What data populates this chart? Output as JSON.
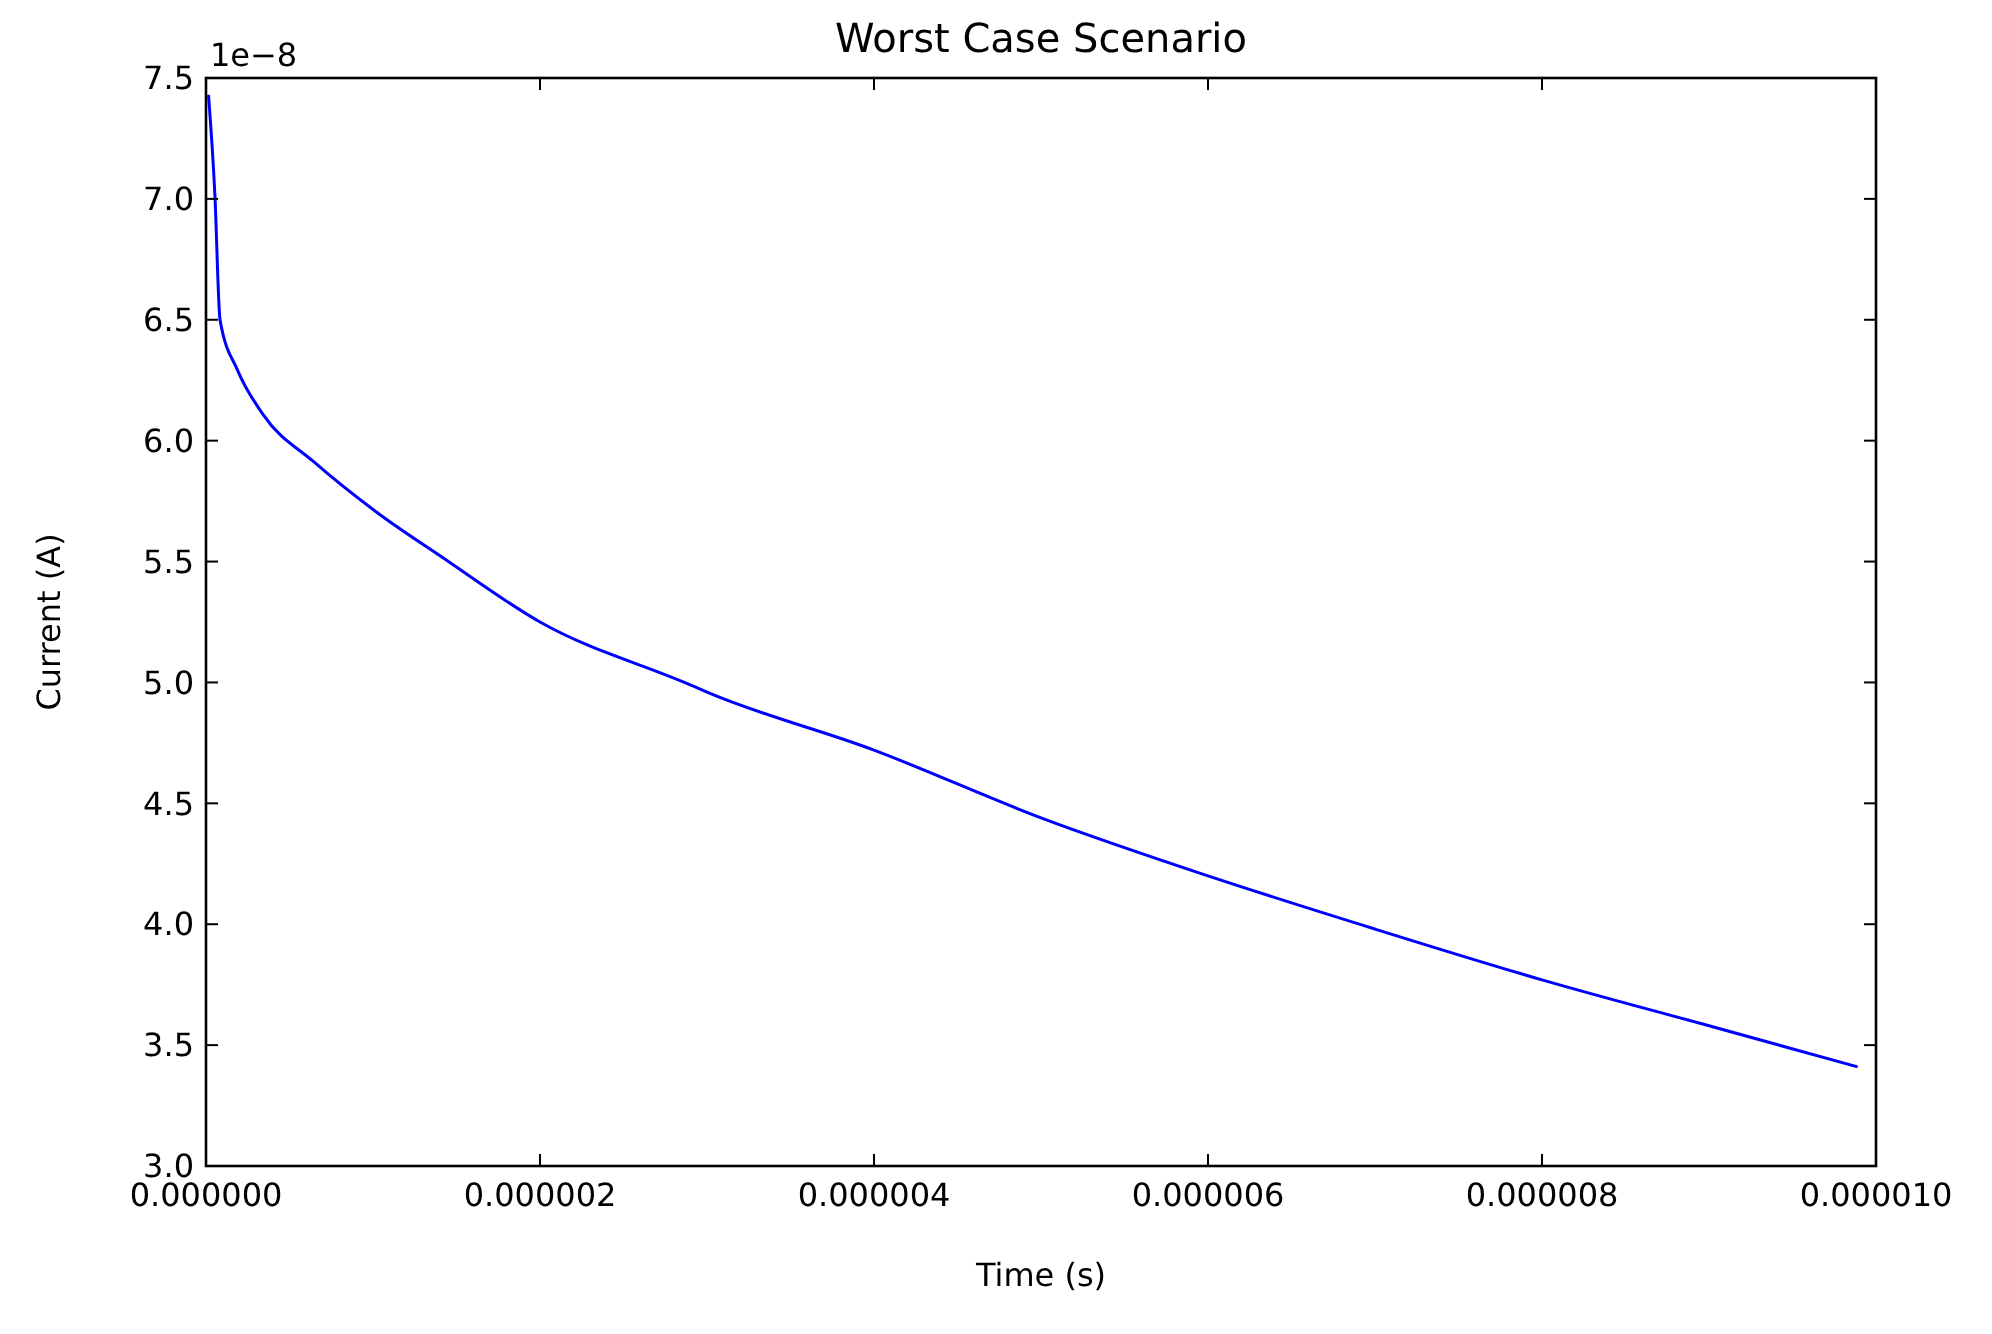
{
  "chart_data": {
    "type": "line",
    "title": "Worst Case Scenario",
    "xlabel": "Time (s)",
    "ylabel": "Current (A)",
    "annotations": [
      "1e−8"
    ],
    "x": [
      1.5e-08,
      5.3e-08,
      8.4e-08,
      1.9e-07,
      3.4e-07,
      6.5e-07,
      1.03e-06,
      1.41e-06,
      2e-06,
      2.9e-06,
      3e-06,
      4e-06,
      5e-06,
      6e-06,
      7e-06,
      8e-06,
      9e-06,
      9.89e-06
    ],
    "series": [
      {
        "color": "#0000ff",
        "values": [
          7.43,
          7.02,
          6.5,
          6.29,
          6.11,
          5.91,
          5.7,
          5.52,
          5.25,
          4.99,
          4.96,
          4.72,
          4.44,
          4.2,
          3.98,
          3.77,
          3.58,
          3.41
        ]
      }
    ],
    "xlim": [
      0,
      1e-05
    ],
    "ylim": [
      3.0,
      7.5
    ],
    "xticks": [
      {
        "value": 0,
        "label": "0.000000"
      },
      {
        "value": 2e-06,
        "label": "0.000002"
      },
      {
        "value": 4e-06,
        "label": "0.000004"
      },
      {
        "value": 6e-06,
        "label": "0.000006"
      },
      {
        "value": 8e-06,
        "label": "0.000008"
      },
      {
        "value": 1e-05,
        "label": "0.000010"
      }
    ],
    "yticks": [
      {
        "value": 3.0,
        "label": "3.0"
      },
      {
        "value": 3.5,
        "label": "3.5"
      },
      {
        "value": 4.0,
        "label": "4.0"
      },
      {
        "value": 4.5,
        "label": "4.5"
      },
      {
        "value": 5.0,
        "label": "5.0"
      },
      {
        "value": 5.5,
        "label": "5.5"
      },
      {
        "value": 6.0,
        "label": "6.0"
      },
      {
        "value": 6.5,
        "label": "6.5"
      },
      {
        "value": 7.0,
        "label": "7.0"
      },
      {
        "value": 7.5,
        "label": "7.5"
      }
    ],
    "grid": false,
    "marker": "none",
    "line_style": "solid"
  }
}
